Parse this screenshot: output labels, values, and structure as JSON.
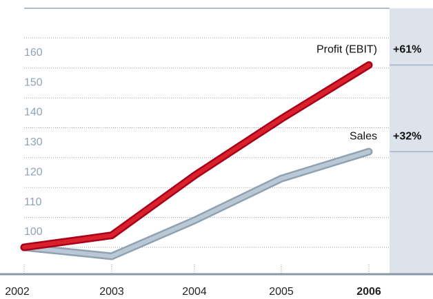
{
  "chart_data": {
    "type": "line",
    "categories": [
      "2002",
      "2003",
      "2004",
      "2005",
      "2006"
    ],
    "series": [
      {
        "name": "Profit (EBIT)",
        "change": "+61%",
        "color": "#d9202b",
        "values": [
          100,
          104,
          124,
          143,
          161
        ]
      },
      {
        "name": "Sales",
        "change": "+32%",
        "color": "#b9c8d4",
        "values": [
          100,
          97,
          109,
          123,
          132
        ]
      }
    ],
    "ylim": [
      91,
      180
    ],
    "yticks": [
      100,
      110,
      120,
      130,
      140,
      150,
      160
    ],
    "grid": true
  }
}
